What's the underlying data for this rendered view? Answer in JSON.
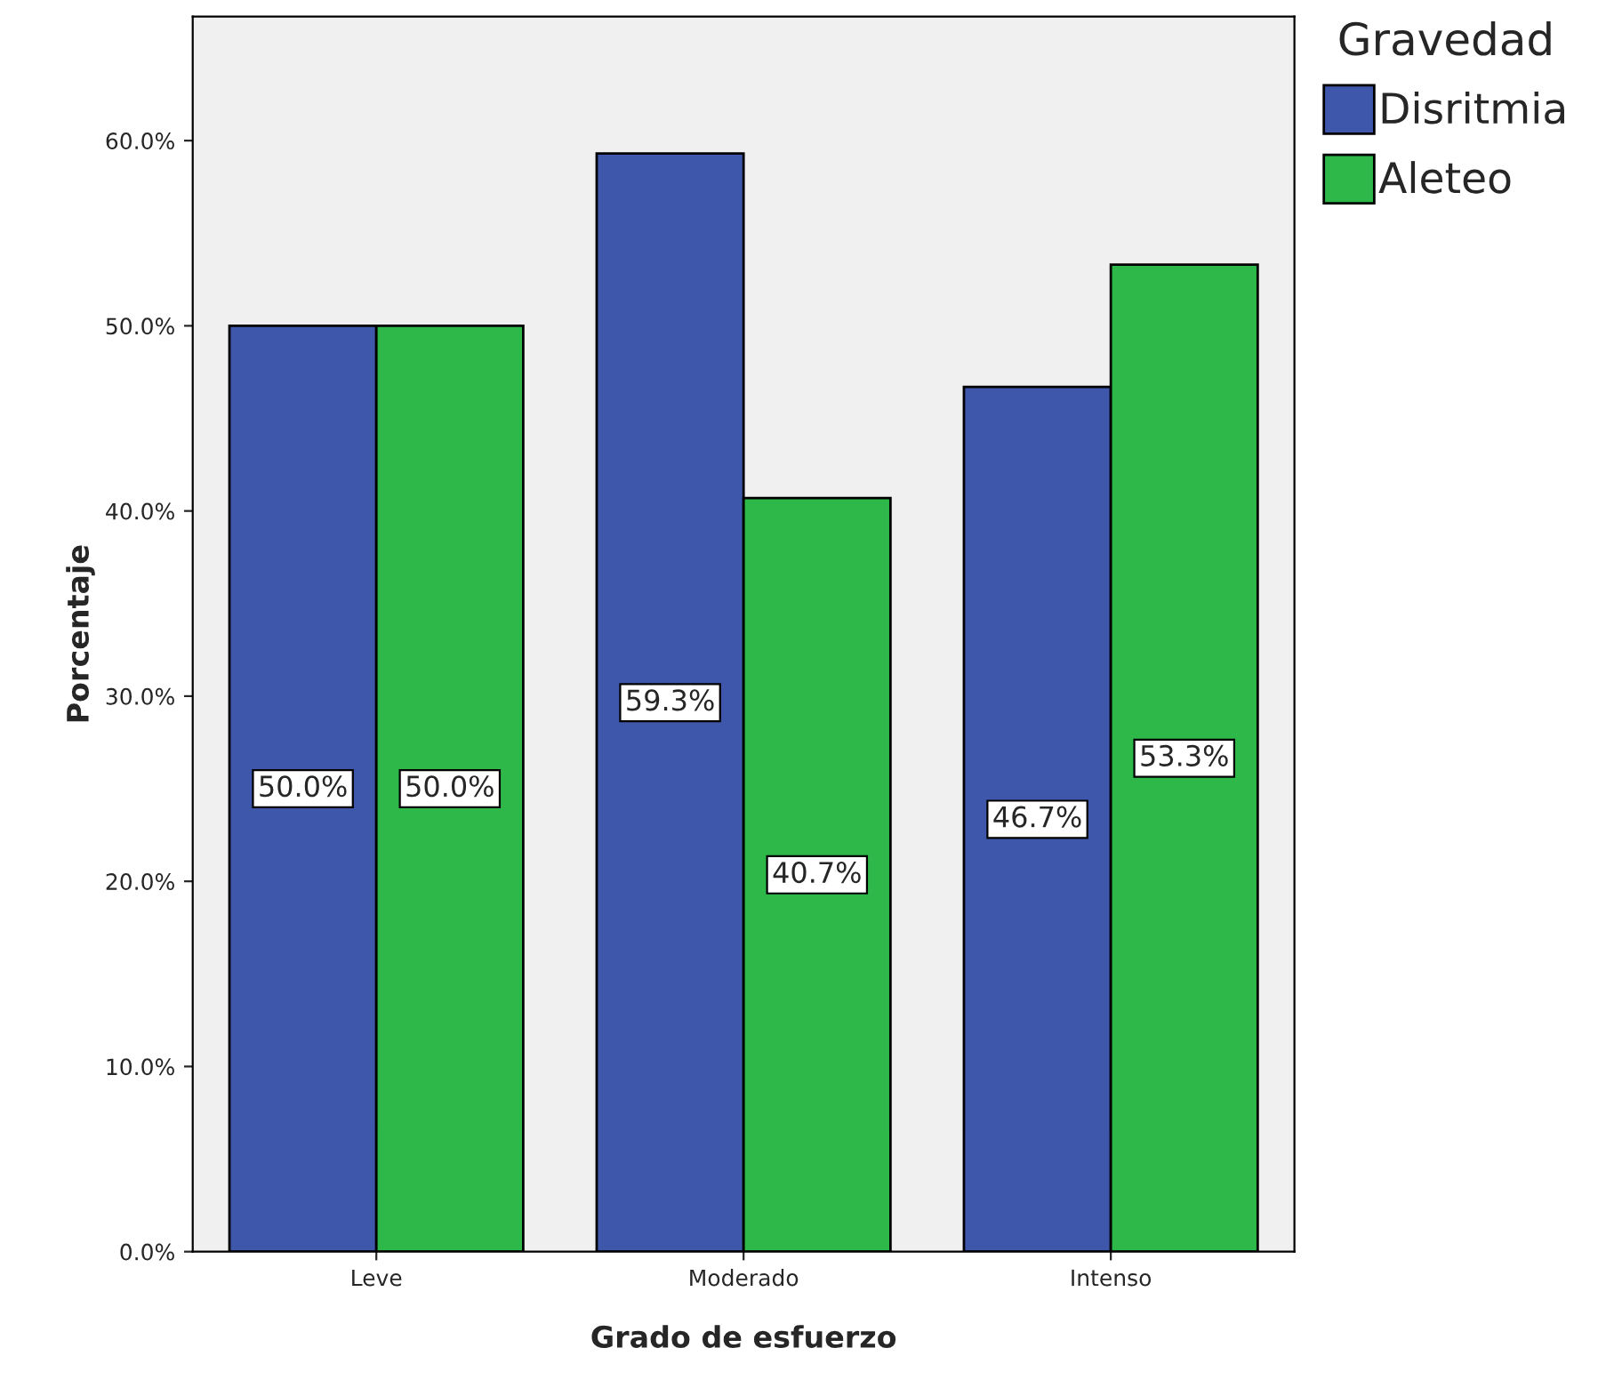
{
  "chart_data": {
    "type": "bar",
    "xlabel": "Grado de esfuerzo",
    "ylabel": "Porcentaje",
    "legend_title": "Gravedad",
    "categories": [
      "Leve",
      "Moderado",
      "Intenso"
    ],
    "series": [
      {
        "name": "Disritmia",
        "color": "#3f57aa",
        "values": [
          50.0,
          59.3,
          46.7
        ],
        "value_labels": [
          "50.0%",
          "59.3%",
          "46.7%"
        ]
      },
      {
        "name": "Aleteo",
        "color": "#2eb84a",
        "values": [
          50.0,
          40.7,
          53.3
        ],
        "value_labels": [
          "50.0%",
          "40.7%",
          "53.3%"
        ]
      }
    ],
    "ylim": [
      0,
      66.7
    ],
    "yticks": [
      {
        "value": 0,
        "label": "0.0%"
      },
      {
        "value": 10,
        "label": "10.0%"
      },
      {
        "value": 20,
        "label": "20.0%"
      },
      {
        "value": 30,
        "label": "30.0%"
      },
      {
        "value": 40,
        "label": "40.0%"
      },
      {
        "value": 50,
        "label": "50.0%"
      },
      {
        "value": 60,
        "label": "60.0%"
      }
    ],
    "grid": false,
    "legend": "top right"
  }
}
